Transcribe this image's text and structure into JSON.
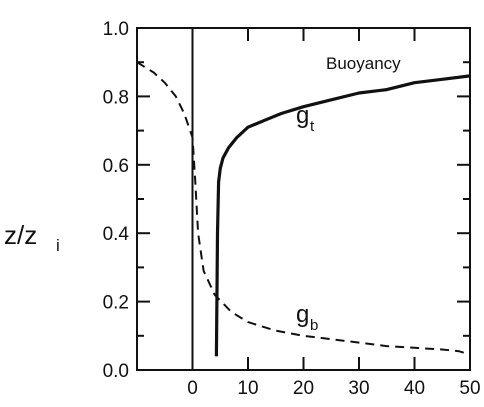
{
  "chart_data": {
    "type": "line",
    "xlim": [
      -10,
      50
    ],
    "ylim": [
      0.0,
      1.0
    ],
    "x_ticks": [
      0,
      10,
      20,
      30,
      40,
      50
    ],
    "x_tick_labels": [
      "0",
      "10",
      "20",
      "30",
      "40",
      "50"
    ],
    "y_ticks": [
      0.0,
      0.2,
      0.4,
      0.6,
      0.8,
      1.0
    ],
    "y_tick_labels": [
      "0.0",
      "0.2",
      "0.4",
      "0.6",
      "0.8",
      "1.0"
    ],
    "ylabel": {
      "main": "z/z",
      "sub": "i"
    },
    "xlabel": "",
    "annotation": "Buoyancy",
    "zero_line_x": 0,
    "series": [
      {
        "label_main": "g",
        "label_sub": "t",
        "style": "solid",
        "x": [
          4.3,
          4.4,
          4.5,
          4.7,
          5.0,
          5.5,
          6.5,
          8.0,
          10.0,
          13.0,
          16.0,
          20.0,
          25.0,
          30.0,
          35.0,
          40.0,
          45.0,
          50.0
        ],
        "y": [
          0.04,
          0.2,
          0.4,
          0.55,
          0.59,
          0.62,
          0.65,
          0.68,
          0.71,
          0.73,
          0.75,
          0.77,
          0.79,
          0.81,
          0.82,
          0.84,
          0.85,
          0.86
        ]
      },
      {
        "label_main": "g",
        "label_sub": "b",
        "style": "dashed",
        "x": [
          -10.0,
          -7.0,
          -5.0,
          -3.0,
          -1.5,
          0.0,
          0.5,
          1.0,
          2.0,
          4.0,
          7.0,
          10.0,
          15.0,
          20.0,
          25.0,
          30.0,
          35.0,
          40.0,
          45.0,
          48.0,
          50.0
        ],
        "y": [
          0.9,
          0.87,
          0.84,
          0.8,
          0.75,
          0.68,
          0.55,
          0.4,
          0.29,
          0.22,
          0.17,
          0.14,
          0.115,
          0.1,
          0.09,
          0.08,
          0.07,
          0.065,
          0.06,
          0.055,
          0.045
        ]
      }
    ]
  }
}
